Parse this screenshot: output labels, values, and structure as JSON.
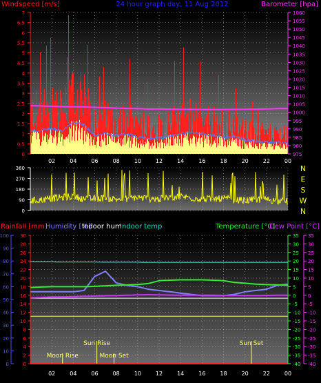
{
  "title": "24 hour graph day, 11 Aug 2012",
  "colors": {
    "windspeed": "#ff1a1a",
    "gust_fill": "#ff2020",
    "avg_wind": "#4a7cff",
    "low_wind": "#ffff88",
    "barometer": "#ff33ff",
    "wind_dir": "#ffff00",
    "rainfall": "#ff2020",
    "humidity": "#8080ff",
    "indoor_hum": "#ffffff",
    "indoor_temp": "#33cccc",
    "temperature": "#33ee33",
    "dew_point": "#cc33ff",
    "axis_blue": "#5050ff",
    "axis_green": "#33ff33",
    "axis_magenta": "#ff33ff",
    "grid": "#bbbbbb",
    "event": "#ffff66"
  },
  "panels": {
    "wind": {
      "left_label": "Windspeed [m/s]",
      "right_label": "Barometer [hpa]",
      "y_left_ticks": [
        "0",
        "0.5",
        "1",
        "1.5",
        "2",
        "2.5",
        "3",
        "3.5",
        "4",
        "4.5",
        "5",
        "5.5",
        "6",
        "6.5",
        "7"
      ],
      "y_right_ticks": [
        "975",
        "980",
        "985",
        "990",
        "995",
        "1000",
        "1005",
        "1010",
        "1015",
        "1020",
        "1025",
        "1030",
        "1035",
        "1040",
        "1045",
        "1050",
        "1055",
        "1060"
      ]
    },
    "direction": {
      "y_ticks": [
        "0",
        "90",
        "180",
        "270",
        "360"
      ],
      "compass": [
        "N",
        "W",
        "S",
        "E",
        "N"
      ]
    },
    "weather": {
      "labels": {
        "rainfall": "Rainfall [mm]",
        "humidity": "Humidity [%]",
        "indoor_hum": "Indoor hum",
        "indoor_temp": "Indoor temp",
        "temperature": "Temperature [°C]",
        "dew_point": "Dew Point [°C]"
      },
      "axis_humidity": [
        "0",
        "10",
        "20",
        "30",
        "40",
        "50",
        "60",
        "70",
        "80",
        "90",
        "100"
      ],
      "axis_rain": [
        "0",
        "2",
        "4",
        "6",
        "8",
        "10",
        "12",
        "14",
        "16",
        "18",
        "20",
        "22",
        "24",
        "26",
        "28",
        "30"
      ],
      "axis_temp": [
        "-40",
        "-35",
        "-30",
        "-25",
        "-20",
        "-15",
        "-10",
        "-5",
        "0",
        "5",
        "10",
        "15",
        "20",
        "25",
        "30",
        "35"
      ],
      "axis_dew": [
        "-40",
        "-35",
        "-30",
        "-25",
        "-20",
        "-15",
        "-10",
        "-5",
        "0",
        "5",
        "10",
        "15",
        "20",
        "25",
        "30",
        "35"
      ],
      "events": [
        {
          "label": "Moon Rise",
          "hour": 3.0,
          "row": "bottom"
        },
        {
          "label": "Sun Rise",
          "hour": 6.2,
          "row": "top"
        },
        {
          "label": "Moon Set",
          "hour": 7.8,
          "row": "bottom"
        },
        {
          "label": "Sun Set",
          "hour": 20.6,
          "row": "top"
        }
      ]
    }
  },
  "x_ticks": [
    "02",
    "04",
    "06",
    "08",
    "10",
    "12",
    "14",
    "16",
    "18",
    "20",
    "22",
    "00"
  ],
  "chart_data": [
    {
      "type": "area",
      "name": "wind",
      "xlim": [
        0,
        24
      ],
      "ylim": [
        0,
        7
      ],
      "y2lim": [
        975,
        1060
      ],
      "series": [
        {
          "name": "Windspeed",
          "axis": "left",
          "values_by_hour": [
            2.5,
            2.6,
            2.8,
            2.5,
            3.6,
            3.2,
            2.0,
            2.2,
            2.0,
            2.1,
            1.8,
            1.6,
            1.7,
            1.9,
            2.2,
            2.3,
            2.2,
            2.0,
            1.8,
            1.9,
            1.5,
            1.3,
            1.2,
            1.2,
            1.1
          ]
        },
        {
          "name": "Barometer",
          "axis": "right",
          "values_by_hour": [
            1004.0,
            1003.8,
            1003.6,
            1003.4,
            1003.3,
            1003.2,
            1003.0,
            1002.8,
            1002.5,
            1002.3,
            1002.2,
            1002.0,
            1002.0,
            1001.9,
            1001.8,
            1001.8,
            1001.7,
            1001.7,
            1001.7,
            1001.8,
            1001.8,
            1001.9,
            1002.0,
            1002.2,
            1002.3
          ]
        }
      ]
    },
    {
      "type": "line",
      "name": "wind direction",
      "xlim": [
        0,
        24
      ],
      "ylim": [
        0,
        360
      ],
      "series": [
        {
          "name": "Wind direction",
          "values_by_hour": [
            80,
            90,
            100,
            110,
            120,
            95,
            100,
            105,
            95,
            100,
            110,
            100,
            95,
            110,
            120,
            105,
            100,
            95,
            100,
            90,
            85,
            90,
            95,
            80,
            75
          ]
        }
      ]
    },
    {
      "type": "line",
      "name": "weather",
      "xlim": [
        0,
        24
      ],
      "series": [
        {
          "name": "Humidity",
          "axis": "humidity",
          "values_by_hour": [
            56,
            56,
            56,
            56,
            56,
            57,
            68,
            72,
            63,
            61,
            60,
            58,
            57,
            56,
            55,
            54,
            53,
            53,
            53,
            54,
            56,
            57,
            58,
            61,
            62
          ]
        },
        {
          "name": "Indoor hum",
          "axis": "humidity",
          "values_by_hour": [
            51,
            51,
            51,
            51,
            51,
            51,
            51,
            51,
            51,
            51,
            51,
            51,
            51,
            51,
            51,
            51,
            51,
            51,
            51,
            51,
            51,
            51,
            51,
            51,
            51
          ]
        },
        {
          "name": "Indoor temp",
          "axis": "temp",
          "values_by_hour": [
            19.5,
            19.5,
            19.5,
            19.4,
            19.4,
            19.4,
            19.4,
            19.3,
            19.3,
            19.3,
            19.3,
            19.2,
            19.2,
            19.2,
            19.2,
            19.2,
            19.2,
            19.2,
            19.2,
            19.2,
            19.2,
            19.2,
            19.2,
            19.2,
            19.2
          ]
        },
        {
          "name": "Temperature",
          "axis": "temp",
          "values_by_hour": [
            4.5,
            4.8,
            5.0,
            5.0,
            5.0,
            5.0,
            5.2,
            5.5,
            5.8,
            6.0,
            6.3,
            6.8,
            8.5,
            8.8,
            9.0,
            9.0,
            9.0,
            8.8,
            8.5,
            7.5,
            7.0,
            6.5,
            6.2,
            6.0,
            5.9
          ]
        },
        {
          "name": "Dew Point",
          "axis": "temp",
          "values_by_hour": [
            -1.5,
            -1.3,
            -1.0,
            -1.0,
            -0.8,
            -0.6,
            -0.5,
            -0.3,
            -0.2,
            0.0,
            0.2,
            0.3,
            0.2,
            0.1,
            0.0,
            0.0,
            0.0,
            0.0,
            -0.1,
            -0.2,
            -0.2,
            -0.2,
            -0.1,
            0.0,
            0.0
          ]
        },
        {
          "name": "Rainfall",
          "axis": "rain",
          "values_by_hour": [
            0,
            0,
            0,
            0,
            0,
            0,
            0,
            0,
            0,
            0,
            0,
            0,
            0,
            0,
            0,
            0,
            0,
            0,
            0,
            0,
            0,
            0,
            0,
            0,
            0
          ]
        },
        {
          "name": "Barometer",
          "axis": "humidity",
          "values_by_hour": [
            37,
            37,
            37,
            37,
            37,
            37,
            37,
            37,
            37,
            37,
            37,
            37,
            37,
            37,
            37,
            37,
            37,
            37,
            37,
            37,
            37,
            37,
            37,
            37,
            37
          ]
        }
      ]
    }
  ]
}
